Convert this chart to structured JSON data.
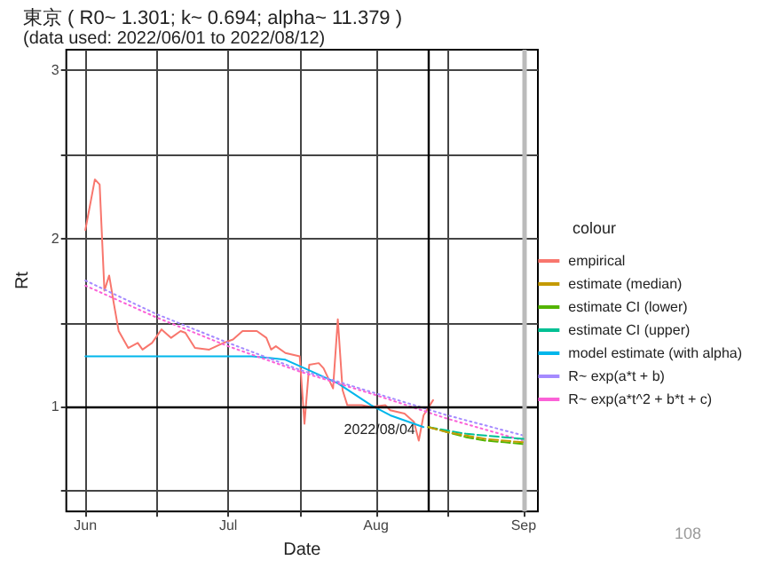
{
  "chart_data": {
    "type": "line",
    "title": "東京 ( R0~ 1.301; k~ 0.694; alpha~ 11.379 )",
    "subtitle": "(data used: 2022/06/01 to 2022/08/12)",
    "xlabel": "Date",
    "ylabel": "Rt",
    "legend_title": "colour",
    "xlim": [
      "2022-05-28",
      "2022-09-04"
    ],
    "xticks": [
      {
        "value": "2022-06-01",
        "label": "Jun"
      },
      {
        "value": "2022-06-16",
        "label": null
      },
      {
        "value": "2022-07-01",
        "label": "Jul"
      },
      {
        "value": "2022-07-16",
        "label": null
      },
      {
        "value": "2022-08-01",
        "label": "Aug"
      },
      {
        "value": "2022-08-16",
        "label": null
      },
      {
        "value": "2022-09-01",
        "label": "Sep"
      }
    ],
    "ylim": [
      0.38,
      3.12
    ],
    "yticks": [
      {
        "value": 0.5,
        "label": null
      },
      1,
      {
        "value": 1.5,
        "label": null
      },
      2,
      {
        "value": 2.5,
        "label": null
      },
      3
    ],
    "grid": true,
    "legend": "right",
    "marker": "none",
    "series": [
      {
        "name": "empirical",
        "color": "#f8766d",
        "line_style": "solid",
        "x": [
          "2022-06-01",
          "2022-06-03",
          "2022-06-04",
          "2022-06-05",
          "2022-06-06",
          "2022-06-07",
          "2022-06-08",
          "2022-06-10",
          "2022-06-12",
          "2022-06-13",
          "2022-06-15",
          "2022-06-17",
          "2022-06-19",
          "2022-06-21",
          "2022-06-22",
          "2022-06-24",
          "2022-06-27",
          "2022-06-30",
          "2022-07-02",
          "2022-07-04",
          "2022-07-07",
          "2022-07-09",
          "2022-07-10",
          "2022-07-11",
          "2022-07-13",
          "2022-07-16",
          "2022-07-17",
          "2022-07-18",
          "2022-07-20",
          "2022-07-21",
          "2022-07-23",
          "2022-07-24",
          "2022-07-25",
          "2022-07-26",
          "2022-07-29",
          "2022-07-31",
          "2022-08-03",
          "2022-08-04",
          "2022-08-07",
          "2022-08-09",
          "2022-08-10",
          "2022-08-11",
          "2022-08-13"
        ],
        "values": [
          2.05,
          2.35,
          2.32,
          1.69,
          1.78,
          1.61,
          1.45,
          1.35,
          1.38,
          1.34,
          1.38,
          1.46,
          1.41,
          1.45,
          1.44,
          1.35,
          1.34,
          1.38,
          1.4,
          1.45,
          1.45,
          1.41,
          1.34,
          1.36,
          1.32,
          1.3,
          0.9,
          1.25,
          1.26,
          1.23,
          1.11,
          1.52,
          1.1,
          1.01,
          1.01,
          1.0,
          1.01,
          0.98,
          0.96,
          0.91,
          0.8,
          0.95,
          1.04
        ]
      },
      {
        "name": "estimate (median)",
        "color": "#c49a00",
        "line_style": "dashed",
        "x": [
          "2022-08-12",
          "2022-08-16",
          "2022-08-20",
          "2022-08-24",
          "2022-08-28",
          "2022-09-01"
        ],
        "values": [
          0.88,
          0.85,
          0.83,
          0.81,
          0.8,
          0.79
        ]
      },
      {
        "name": "estimate CI (lower)",
        "color": "#53b400",
        "line_style": "dashed",
        "x": [
          "2022-08-12",
          "2022-08-16",
          "2022-08-20",
          "2022-08-24",
          "2022-08-28",
          "2022-09-01"
        ],
        "values": [
          0.88,
          0.85,
          0.82,
          0.8,
          0.79,
          0.78
        ]
      },
      {
        "name": "estimate CI (upper)",
        "color": "#00c094",
        "line_style": "dashed",
        "x": [
          "2022-08-12",
          "2022-08-16",
          "2022-08-20",
          "2022-08-24",
          "2022-08-28",
          "2022-09-01"
        ],
        "values": [
          0.88,
          0.86,
          0.84,
          0.83,
          0.82,
          0.81
        ]
      },
      {
        "name": "model estimate (with alpha)",
        "color": "#00b6eb",
        "line_style": "solid",
        "x": [
          "2022-06-01",
          "2022-06-15",
          "2022-07-01",
          "2022-07-06",
          "2022-07-10",
          "2022-07-13",
          "2022-07-17",
          "2022-07-24",
          "2022-07-31",
          "2022-08-04",
          "2022-08-11"
        ],
        "values": [
          1.3,
          1.3,
          1.3,
          1.3,
          1.29,
          1.28,
          1.23,
          1.14,
          1.01,
          0.95,
          0.88
        ]
      },
      {
        "name": "R~ exp(a*t + b)",
        "color": "#a58aff",
        "line_style": "dotted",
        "x": [
          "2022-06-01",
          "2022-06-16",
          "2022-07-01",
          "2022-07-16",
          "2022-08-01",
          "2022-08-16",
          "2022-09-01"
        ],
        "values": [
          1.75,
          1.55,
          1.38,
          1.22,
          1.08,
          0.95,
          0.83
        ]
      },
      {
        "name": "R~ exp(a*t^2 + b*t + c)",
        "color": "#fb61d7",
        "line_style": "dotted",
        "x": [
          "2022-06-01",
          "2022-06-16",
          "2022-07-01",
          "2022-07-16",
          "2022-08-01",
          "2022-08-16",
          "2022-09-01"
        ],
        "values": [
          1.72,
          1.53,
          1.36,
          1.21,
          1.07,
          0.93,
          0.8
        ]
      }
    ],
    "ref_lines": [
      {
        "axis": "y",
        "value": 1,
        "color": "#000000"
      },
      {
        "axis": "x",
        "value": "2022-08-12",
        "color": "#000000"
      },
      {
        "axis": "x",
        "value": "2022-09-01",
        "color": "#bbbbbb"
      }
    ],
    "annotations": [
      {
        "text": "2022/08/04",
        "x": "2022-08-04",
        "y": 0.92
      },
      "108"
    ]
  }
}
